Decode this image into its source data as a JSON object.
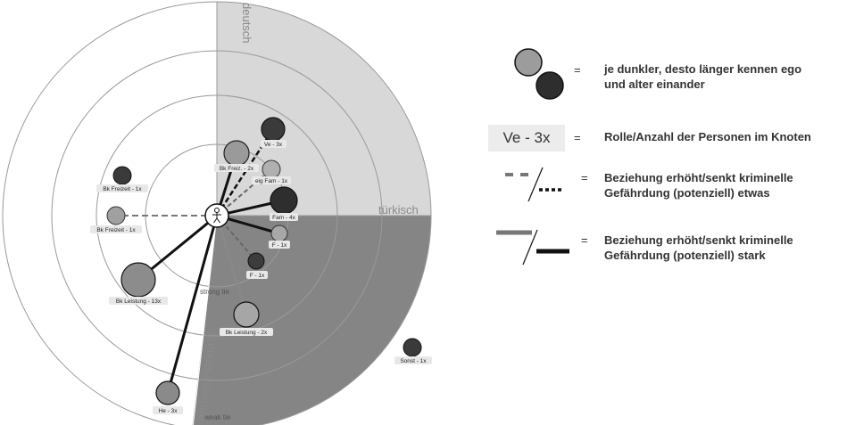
{
  "sectors": {
    "deutsch": "deutsch",
    "tuerkisch": "türkisch",
    "andere": "andere Herkunft"
  },
  "tie_labels": {
    "strong": "strong tie",
    "weak": "weak tie"
  },
  "nodes": [
    {
      "label": "Ve - 3x",
      "shade": "#3a3a3a"
    },
    {
      "label": "Bk Freiz. - 2x",
      "shade": "#9a9a9a"
    },
    {
      "label": "eig Fam - 1x",
      "shade": "#b0b0b0"
    },
    {
      "label": "Fam - 4x",
      "shade": "#2e2e2e"
    },
    {
      "label": "F - 1x",
      "shade": "#a8a8a8"
    },
    {
      "label": "F - 1x",
      "shade": "#3c3c3c"
    },
    {
      "label": "Bk Freizeit - 1x",
      "shade": "#3a3a3a"
    },
    {
      "label": "Bk Freizeit - 1x",
      "shade": "#a0a0a0"
    },
    {
      "label": "Bk Leistung - 13x",
      "shade": "#8c8c8c"
    },
    {
      "label": "Bk Leistung - 2x",
      "shade": "#a6a6a6"
    },
    {
      "label": "He - 3x",
      "shade": "#8a8a8a"
    },
    {
      "label": "Sonst - 1x",
      "shade": "#3a3a3a"
    }
  ],
  "legend": {
    "eq": "=",
    "shade_text_1": "je dunkler, desto länger kennen ego",
    "shade_text_2": "und alter einander",
    "box_text": "Ve - 3x",
    "box_desc": "Rolle/Anzahl der Personen im Knoten",
    "dashed_text_1": "Beziehung erhöht/senkt kriminelle",
    "dashed_text_2": "Gefährdung (potenziell) etwas",
    "solid_text_1": "Beziehung erhöht/senkt kriminelle",
    "solid_text_2": "Gefährdung (potenziell) stark"
  }
}
